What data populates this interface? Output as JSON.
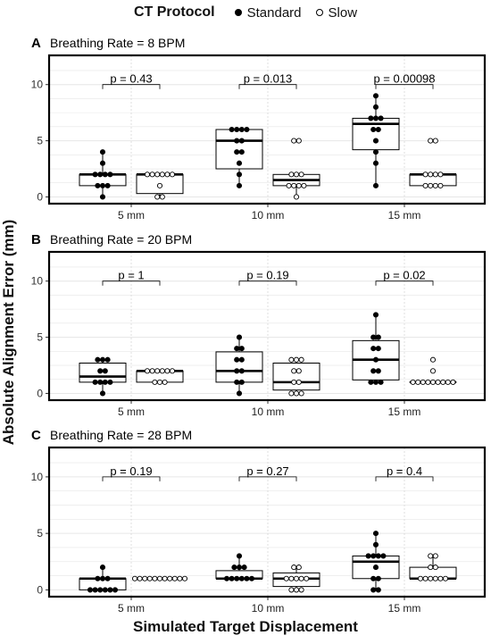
{
  "legend": {
    "title": "CT Protocol",
    "standard_label": "Standard",
    "slow_label": "Slow"
  },
  "colors": {
    "standard_fill": "#000000",
    "slow_fill": "#ffffff",
    "frame": "#000000",
    "grid": "#e6e6e6"
  },
  "chart_data": [
    {
      "type": "box",
      "panel_label": "A",
      "title": "Breathing Rate = 8 BPM",
      "categories": [
        "5 mm",
        "10 mm",
        "15 mm"
      ],
      "xlabel": "Simulated Target Displacement",
      "ylabel": "Absolute Alignment Error (mm)",
      "ylim": [
        -0.6,
        12.6
      ],
      "yticks": [
        0,
        5,
        10
      ],
      "grid": true,
      "series": [
        {
          "name": "Standard",
          "values": [
            [
              0,
              1,
              1,
              1,
              2,
              2,
              2,
              2,
              3,
              4
            ],
            [
              1,
              2,
              3,
              4,
              4,
              5,
              5,
              6,
              6,
              6,
              6
            ],
            [
              1,
              3,
              4,
              5,
              6,
              6,
              7,
              7,
              7,
              8,
              9
            ]
          ],
          "box": [
            [
              1,
              2,
              2
            ],
            [
              2.5,
              5,
              6
            ],
            [
              4.2,
              6.5,
              7
            ]
          ],
          "whiskers": [
            [
              0,
              4
            ],
            [
              1,
              6
            ],
            [
              1,
              9
            ]
          ]
        },
        {
          "name": "Slow",
          "values": [
            [
              0,
              0,
              1,
              2,
              2,
              2,
              2,
              2,
              2
            ],
            [
              0,
              1,
              1,
              1,
              1,
              2,
              2,
              2,
              5,
              5
            ],
            [
              1,
              1,
              1,
              1,
              2,
              2,
              2,
              2,
              5,
              5
            ]
          ],
          "box": [
            [
              0.3,
              2,
              2
            ],
            [
              1,
              1.5,
              2
            ],
            [
              1,
              2,
              2
            ]
          ],
          "whiskers": [
            [
              0,
              2
            ],
            [
              0,
              2
            ],
            [
              1,
              2
            ]
          ]
        }
      ],
      "p_values": [
        "p = 0.43",
        "p = 0.013",
        "p = 0.00098"
      ]
    },
    {
      "type": "box",
      "panel_label": "B",
      "title": "Breathing Rate = 20 BPM",
      "categories": [
        "5 mm",
        "10 mm",
        "15 mm"
      ],
      "xlabel": "Simulated Target Displacement",
      "ylabel": "Absolute Alignment Error (mm)",
      "ylim": [
        -0.6,
        12.6
      ],
      "yticks": [
        0,
        5,
        10
      ],
      "grid": true,
      "series": [
        {
          "name": "Standard",
          "values": [
            [
              0,
              1,
              1,
              1,
              1,
              2,
              2,
              3,
              3,
              3
            ],
            [
              0,
              1,
              1,
              2,
              2,
              3,
              3,
              4,
              4,
              5
            ],
            [
              1,
              1,
              1,
              2,
              2,
              3,
              4,
              4,
              5,
              5,
              7
            ]
          ],
          "box": [
            [
              1,
              1.5,
              2.7
            ],
            [
              1,
              2,
              3.7
            ],
            [
              1.2,
              3,
              4.7
            ]
          ],
          "whiskers": [
            [
              0,
              3
            ],
            [
              0,
              5
            ],
            [
              1,
              7
            ]
          ]
        },
        {
          "name": "Slow",
          "values": [
            [
              1,
              1,
              1,
              2,
              2,
              2,
              2,
              2,
              2
            ],
            [
              0,
              0,
              0,
              1,
              1,
              2,
              2,
              3,
              3,
              3
            ],
            [
              1,
              1,
              1,
              1,
              1,
              1,
              1,
              1,
              1,
              2,
              3
            ]
          ],
          "box": [
            [
              1,
              2,
              2
            ],
            [
              0.3,
              1,
              2.7
            ],
            [
              1,
              1,
              1
            ]
          ],
          "whiskers": [
            [
              1,
              2
            ],
            [
              0,
              3
            ],
            [
              1,
              1
            ]
          ]
        }
      ],
      "p_values": [
        "p = 1",
        "p = 0.19",
        "p = 0.02"
      ]
    },
    {
      "type": "box",
      "panel_label": "C",
      "title": "Breathing Rate = 28 BPM",
      "categories": [
        "5 mm",
        "10 mm",
        "15 mm"
      ],
      "xlabel": "Simulated Target Displacement",
      "ylabel": "Absolute Alignment Error (mm)",
      "ylim": [
        -0.6,
        12.6
      ],
      "yticks": [
        0,
        5,
        10
      ],
      "grid": true,
      "series": [
        {
          "name": "Standard",
          "values": [
            [
              0,
              0,
              0,
              0,
              0,
              0,
              1,
              1,
              1,
              2
            ],
            [
              1,
              1,
              1,
              1,
              1,
              1,
              2,
              2,
              2,
              3
            ],
            [
              0,
              0,
              1,
              1,
              2,
              3,
              3,
              3,
              3,
              4,
              5
            ]
          ],
          "box": [
            [
              0,
              1,
              1
            ],
            [
              1,
              1,
              1.7
            ],
            [
              1,
              2.5,
              3
            ]
          ],
          "whiskers": [
            [
              0,
              2
            ],
            [
              1,
              3
            ],
            [
              0,
              5
            ]
          ]
        },
        {
          "name": "Slow",
          "values": [
            [
              1,
              1,
              1,
              1,
              1,
              1,
              1,
              1,
              1,
              1,
              1
            ],
            [
              0,
              0,
              0,
              1,
              1,
              1,
              1,
              1,
              2,
              2
            ],
            [
              1,
              1,
              1,
              1,
              1,
              1,
              2,
              2,
              3,
              3
            ]
          ],
          "box": [
            [
              1,
              1,
              1
            ],
            [
              0.3,
              1,
              1.5
            ],
            [
              1,
              1,
              2
            ]
          ],
          "whiskers": [
            [
              1,
              1
            ],
            [
              0,
              2
            ],
            [
              1,
              3
            ]
          ]
        }
      ],
      "p_values": [
        "p = 0.19",
        "p = 0.27",
        "p = 0.4"
      ]
    }
  ]
}
